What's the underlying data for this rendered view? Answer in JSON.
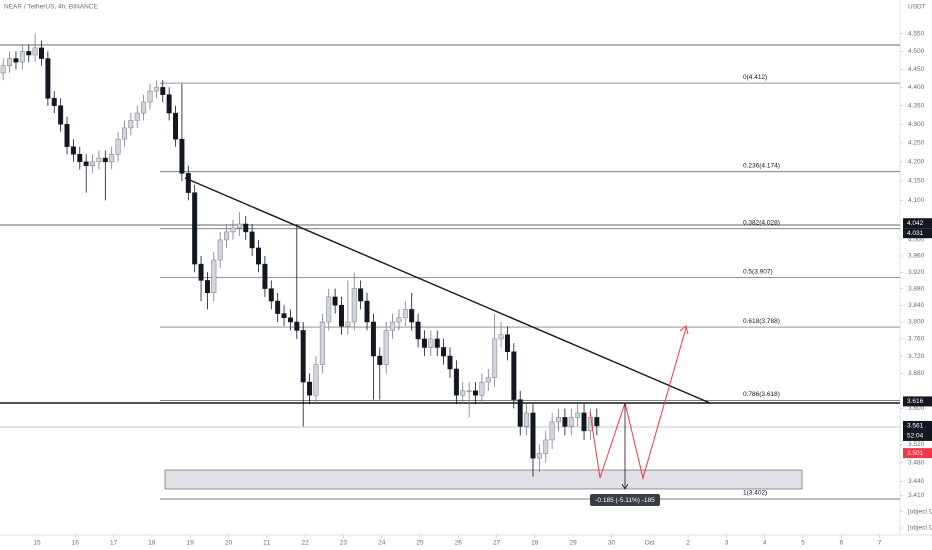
{
  "chart_data": {
    "type": "candlestick",
    "title": "NEAR / TetherUS, 4h, BINANCE",
    "currency": "USDT",
    "log_scale": true,
    "bull_color": "#d1d4dc",
    "bear_color": "#131722",
    "xlim": [
      -0.5,
      140.5
    ],
    "xticks": [
      {
        "value": 5.3,
        "label": "15"
      },
      {
        "value": 11.3,
        "label": "16"
      },
      {
        "value": 17.3,
        "label": "17"
      },
      {
        "value": 23.3,
        "label": "18"
      },
      {
        "value": 29.3,
        "label": "19"
      },
      {
        "value": 35.3,
        "label": "20"
      },
      {
        "value": 41.3,
        "label": "21"
      },
      {
        "value": 47.3,
        "label": "22"
      },
      {
        "value": 53.3,
        "label": "23"
      },
      {
        "value": 59.3,
        "label": "24"
      },
      {
        "value": 65.3,
        "label": "25"
      },
      {
        "value": 71.3,
        "label": "26"
      },
      {
        "value": 77.3,
        "label": "27"
      },
      {
        "value": 83.3,
        "label": "28"
      },
      {
        "value": 89.3,
        "label": "29"
      },
      {
        "value": 95.3,
        "label": "30"
      },
      {
        "value": 101.3,
        "label": "Oct"
      },
      {
        "value": 107.3,
        "label": "2"
      },
      {
        "value": 113.3,
        "label": "3"
      },
      {
        "value": 119.3,
        "label": "4"
      },
      {
        "value": 125.3,
        "label": "5"
      },
      {
        "value": 131.3,
        "label": "6"
      },
      {
        "value": 137.3,
        "label": "7"
      }
    ],
    "ylim": [
      3.316,
      4.647
    ],
    "yticks": [
      {
        "value": 4.55,
        "label": "4.550"
      },
      {
        "value": 4.5,
        "label": "4.500"
      },
      {
        "value": 4.45,
        "label": "4.450"
      },
      {
        "value": 4.4,
        "label": "4.400"
      },
      {
        "value": 4.35,
        "label": "4.350"
      },
      {
        "value": 4.3,
        "label": "4.300"
      },
      {
        "value": 4.25,
        "label": "4.250"
      },
      {
        "value": 4.2,
        "label": "4.200"
      },
      {
        "value": 4.15,
        "label": "4.150"
      },
      {
        "value": 4.1,
        "label": "4.100"
      },
      {
        "value": 4,
        "label": "4.000"
      },
      {
        "value": 3.96,
        "label": "3.960"
      },
      {
        "value": 3.92,
        "label": "3.920"
      },
      {
        "value": 3.88,
        "label": "3.880"
      },
      {
        "value": 3.84,
        "label": "3.840"
      },
      {
        "value": 3.8,
        "label": "3.800"
      },
      {
        "value": 3.76,
        "label": "3.760"
      },
      {
        "value": 3.72,
        "label": "3.720"
      },
      {
        "value": 3.68,
        "label": "3.680"
      },
      {
        "value": 3.6,
        "label": "3.600"
      },
      {
        "value": 3.52,
        "label": "3.520"
      },
      {
        "value": 3.48,
        "label": "3.480"
      },
      {
        "value": 3.44,
        "label": "3.440"
      },
      {
        "value": 3.41,
        "label": "3.410"
      },
      {
        "value": 3.375
      },
      {
        "value": 3.341
      }
    ],
    "open": [
      4.44,
      4.46,
      4.48,
      4.47,
      4.5,
      4.49,
      4.51,
      4.48,
      4.37,
      4.35,
      4.3,
      4.24,
      4.22,
      4.2,
      4.19,
      4.2,
      4.21,
      4.2,
      4.22,
      4.26,
      4.29,
      4.31,
      4.33,
      4.36,
      4.39,
      4.4,
      4.38,
      4.33,
      4.26,
      4.17,
      4.12,
      3.94,
      3.9,
      3.87,
      3.95,
      4.0,
      4.02,
      4.03,
      4.04,
      4.02,
      3.98,
      3.94,
      3.88,
      3.85,
      3.82,
      3.81,
      3.8,
      3.78,
      3.66,
      3.63,
      3.7,
      3.8,
      3.86,
      3.84,
      3.79,
      3.8,
      3.88,
      3.85,
      3.8,
      3.72,
      3.7,
      3.78,
      3.8,
      3.81,
      3.83,
      3.8,
      3.76,
      3.74,
      3.76,
      3.74,
      3.72,
      3.69,
      3.63,
      3.64,
      3.64,
      3.63,
      3.66,
      3.67,
      3.76,
      3.77,
      3.73,
      3.62,
      3.56,
      3.59,
      3.49,
      3.5,
      3.53,
      3.57,
      3.58,
      3.56,
      3.58,
      3.59,
      3.55,
      3.58
    ],
    "high": [
      4.48,
      4.5,
      4.5,
      4.52,
      4.52,
      4.55,
      4.53,
      4.5,
      4.39,
      4.37,
      4.32,
      4.26,
      4.24,
      4.22,
      4.22,
      4.23,
      4.23,
      4.24,
      4.28,
      4.31,
      4.33,
      4.35,
      4.38,
      4.41,
      4.42,
      4.42,
      4.4,
      4.35,
      4.41,
      4.19,
      4.14,
      3.96,
      3.92,
      3.97,
      4.02,
      4.04,
      4.05,
      4.07,
      4.06,
      4.04,
      4.0,
      3.96,
      3.9,
      3.87,
      3.84,
      3.83,
      4.04,
      3.8,
      3.68,
      3.72,
      3.82,
      3.88,
      3.88,
      3.86,
      3.9,
      3.92,
      3.9,
      3.87,
      3.82,
      3.74,
      3.8,
      3.82,
      3.83,
      3.85,
      3.87,
      3.82,
      3.78,
      3.78,
      3.78,
      3.76,
      3.74,
      3.71,
      3.66,
      3.66,
      3.66,
      3.68,
      3.69,
      3.82,
      3.8,
      3.79,
      3.75,
      3.64,
      3.61,
      3.61,
      3.52,
      3.55,
      3.59,
      3.6,
      3.6,
      3.6,
      3.61,
      3.61,
      3.6,
      3.6
    ],
    "low": [
      4.42,
      4.44,
      4.45,
      4.45,
      4.47,
      4.47,
      4.46,
      4.35,
      4.33,
      4.28,
      4.22,
      4.2,
      4.18,
      4.12,
      4.17,
      4.18,
      4.1,
      4.18,
      4.2,
      4.24,
      4.27,
      4.29,
      4.31,
      4.34,
      4.37,
      4.36,
      4.31,
      4.24,
      4.15,
      4.1,
      3.92,
      3.85,
      3.83,
      3.85,
      3.93,
      3.98,
      4.0,
      4.01,
      4.0,
      3.96,
      3.92,
      3.86,
      3.83,
      3.8,
      3.79,
      3.78,
      3.76,
      3.56,
      3.61,
      3.61,
      3.68,
      3.78,
      3.82,
      3.77,
      3.77,
      3.78,
      3.83,
      3.78,
      3.62,
      3.62,
      3.68,
      3.76,
      3.78,
      3.79,
      3.78,
      3.74,
      3.72,
      3.72,
      3.72,
      3.7,
      3.67,
      3.61,
      3.61,
      3.58,
      3.61,
      3.61,
      3.64,
      3.65,
      3.74,
      3.71,
      3.6,
      3.54,
      3.54,
      3.45,
      3.46,
      3.48,
      3.51,
      3.55,
      3.54,
      3.54,
      3.56,
      3.53,
      3.53,
      3.54
    ],
    "close": [
      4.46,
      4.48,
      4.47,
      4.5,
      4.49,
      4.51,
      4.48,
      4.37,
      4.35,
      4.3,
      4.24,
      4.22,
      4.2,
      4.19,
      4.2,
      4.21,
      4.2,
      4.22,
      4.26,
      4.29,
      4.31,
      4.33,
      4.36,
      4.39,
      4.4,
      4.38,
      4.33,
      4.26,
      4.17,
      4.12,
      3.94,
      3.9,
      3.87,
      3.95,
      4.0,
      4.02,
      4.03,
      4.04,
      4.02,
      3.98,
      3.94,
      3.88,
      3.85,
      3.82,
      3.81,
      3.8,
      3.78,
      3.66,
      3.63,
      3.7,
      3.8,
      3.86,
      3.84,
      3.79,
      3.8,
      3.88,
      3.85,
      3.8,
      3.72,
      3.7,
      3.78,
      3.8,
      3.81,
      3.83,
      3.8,
      3.76,
      3.74,
      3.76,
      3.74,
      3.72,
      3.69,
      3.63,
      3.64,
      3.64,
      3.63,
      3.66,
      3.67,
      3.76,
      3.77,
      3.73,
      3.62,
      3.56,
      3.59,
      3.49,
      3.5,
      3.53,
      3.57,
      3.58,
      3.56,
      3.58,
      3.59,
      3.55,
      3.58,
      3.561
    ],
    "fib_levels": [
      {
        "value": 4.412,
        "label": "0(4.412)"
      },
      {
        "value": 4.174,
        "label": "0.236(4.174)"
      },
      {
        "value": 4.028,
        "label": "0.382(4.028)"
      },
      {
        "value": 3.907,
        "label": "0.5(3.907)"
      },
      {
        "value": 3.788,
        "label": "0.618(3.788)"
      },
      {
        "value": 3.618,
        "label": "0.786(3.618)"
      },
      {
        "value": 3.402,
        "label": "1(3.402)"
      }
    ],
    "price_labels": [
      {
        "value": 4.042,
        "color": "#131722"
      },
      {
        "value": 4.031,
        "color": "#131722"
      },
      {
        "value": 3.616,
        "color": "#131722"
      },
      {
        "value": 3.561,
        "color": "#131722",
        "countdown": "52:04"
      },
      {
        "value": 3.501,
        "color": "#f23645"
      }
    ],
    "measure_label": "-0.185 (-5.11%) -185"
  }
}
